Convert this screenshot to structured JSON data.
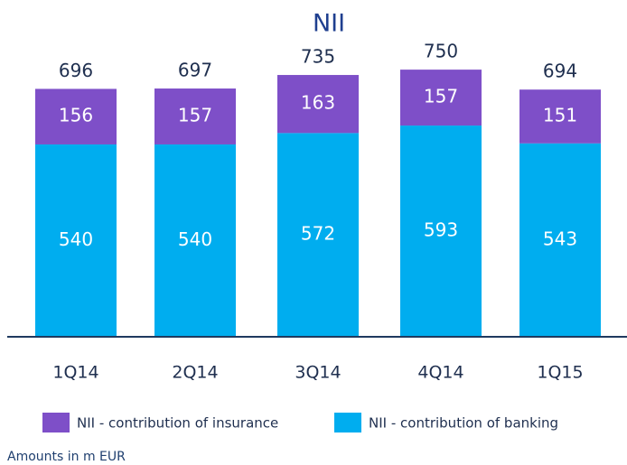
{
  "chart_data": {
    "type": "stacked_bar",
    "title": "NII",
    "categories": [
      "1Q14",
      "2Q14",
      "3Q14",
      "4Q14",
      "1Q15"
    ],
    "series": [
      {
        "name": "NII - contribution of insurance",
        "color": "#7e4fc8",
        "values": [
          156,
          157,
          163,
          157,
          151
        ]
      },
      {
        "name": "NII - contribution of banking",
        "color": "#00adef",
        "values": [
          540,
          540,
          572,
          593,
          543
        ]
      }
    ],
    "totals": [
      696,
      697,
      735,
      750,
      694
    ],
    "note": "Amounts in m EUR"
  }
}
